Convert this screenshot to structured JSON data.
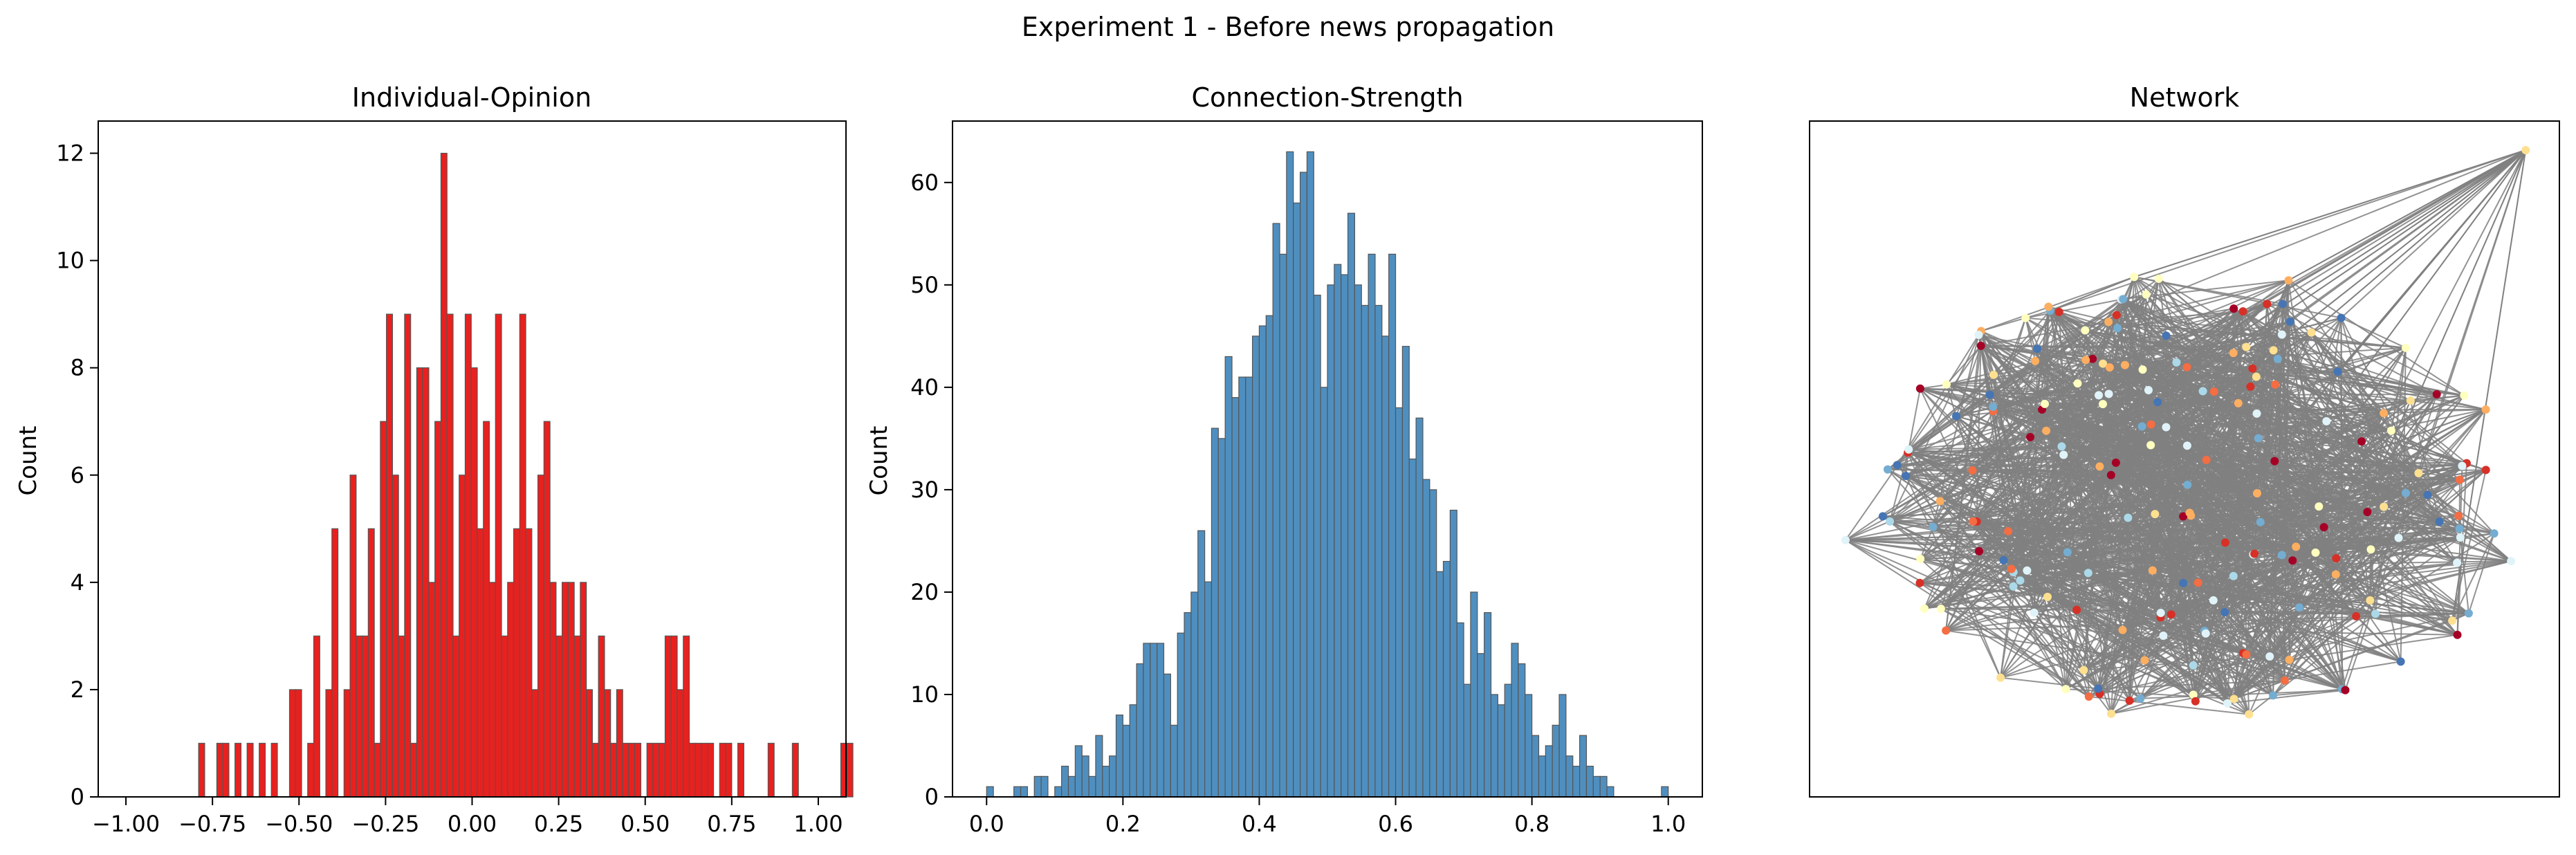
{
  "figure": {
    "suptitle": "Experiment 1 - Before news propagation"
  },
  "chart_data": [
    {
      "type": "bar",
      "title": "Individual-Opinion",
      "xlabel": "",
      "ylabel": "Count",
      "xlim": [
        -1.08,
        1.08
      ],
      "ylim": [
        0,
        12.6
      ],
      "xticks": [
        -1.0,
        -0.75,
        -0.5,
        -0.25,
        0.0,
        0.25,
        0.5,
        0.75,
        1.0
      ],
      "xtick_labels": [
        "−1.00",
        "−0.75",
        "−0.50",
        "−0.25",
        "0.00",
        "0.25",
        "0.50",
        "0.75",
        "1.00"
      ],
      "yticks": [
        0,
        2,
        4,
        6,
        8,
        10,
        12
      ],
      "ytick_labels": [
        "0",
        "2",
        "4",
        "6",
        "8",
        "10",
        "12"
      ],
      "grid": false,
      "color": "#e8211f",
      "bin_start": -0.79,
      "bin_width": 0.0175,
      "values": [
        1,
        0,
        0,
        1,
        1,
        0,
        1,
        0,
        1,
        0,
        1,
        0,
        1,
        0,
        0,
        2,
        2,
        0,
        1,
        3,
        0,
        2,
        5,
        0,
        2,
        6,
        3,
        3,
        5,
        1,
        7,
        9,
        6,
        3,
        9,
        1,
        8,
        8,
        4,
        7,
        12,
        9,
        3,
        6,
        9,
        8,
        5,
        7,
        4,
        9,
        3,
        4,
        5,
        9,
        5,
        2,
        6,
        7,
        4,
        3,
        4,
        4,
        3,
        4,
        2,
        1,
        3,
        2,
        1,
        2,
        1,
        1,
        1,
        0,
        1,
        1,
        1,
        3,
        3,
        2,
        3,
        1,
        1,
        1,
        1,
        0,
        1,
        1,
        0,
        1,
        0,
        0,
        0,
        0,
        1,
        0,
        0,
        0,
        1,
        0,
        0,
        0,
        0,
        0,
        0,
        0,
        1,
        1
      ]
    },
    {
      "type": "bar",
      "title": "Connection-Strength",
      "xlabel": "",
      "ylabel": "Count",
      "xlim": [
        -0.05,
        1.05
      ],
      "ylim": [
        0,
        66
      ],
      "xticks": [
        0.0,
        0.2,
        0.4,
        0.6,
        0.8,
        1.0
      ],
      "xtick_labels": [
        "0.0",
        "0.2",
        "0.4",
        "0.6",
        "0.8",
        "1.0"
      ],
      "yticks": [
        0,
        10,
        20,
        30,
        40,
        50,
        60
      ],
      "ytick_labels": [
        "0",
        "10",
        "20",
        "30",
        "40",
        "50",
        "60"
      ],
      "grid": false,
      "color": "#4f8fc0",
      "bin_start": 0.0,
      "bin_width": 0.01,
      "values": [
        1,
        0,
        0,
        0,
        1,
        1,
        0,
        2,
        2,
        0,
        1,
        3,
        2,
        5,
        4,
        2,
        6,
        3,
        4,
        8,
        7,
        9,
        13,
        15,
        15,
        15,
        12,
        7,
        16,
        18,
        20,
        26,
        21,
        36,
        35,
        43,
        39,
        41,
        41,
        45,
        46,
        47,
        56,
        53,
        63,
        58,
        61,
        63,
        49,
        40,
        50,
        52,
        51,
        57,
        50,
        48,
        53,
        48,
        45,
        53,
        38,
        44,
        33,
        37,
        31,
        30,
        22,
        23,
        28,
        17,
        11,
        20,
        14,
        18,
        10,
        9,
        11,
        15,
        13,
        10,
        6,
        4,
        5,
        7,
        10,
        4,
        3,
        6,
        3,
        2,
        2,
        1,
        0,
        0,
        0,
        0,
        0,
        0,
        0,
        1
      ]
    },
    {
      "type": "network",
      "title": "Network",
      "node_colors_palette": [
        "#a50026",
        "#d73027",
        "#f46d43",
        "#fdae61",
        "#fee090",
        "#ffffbf",
        "#e0f3f8",
        "#abd9e9",
        "#74add1",
        "#4575b4"
      ],
      "edge_color": "#808080",
      "node_count": 200,
      "axes_visible": false
    }
  ]
}
